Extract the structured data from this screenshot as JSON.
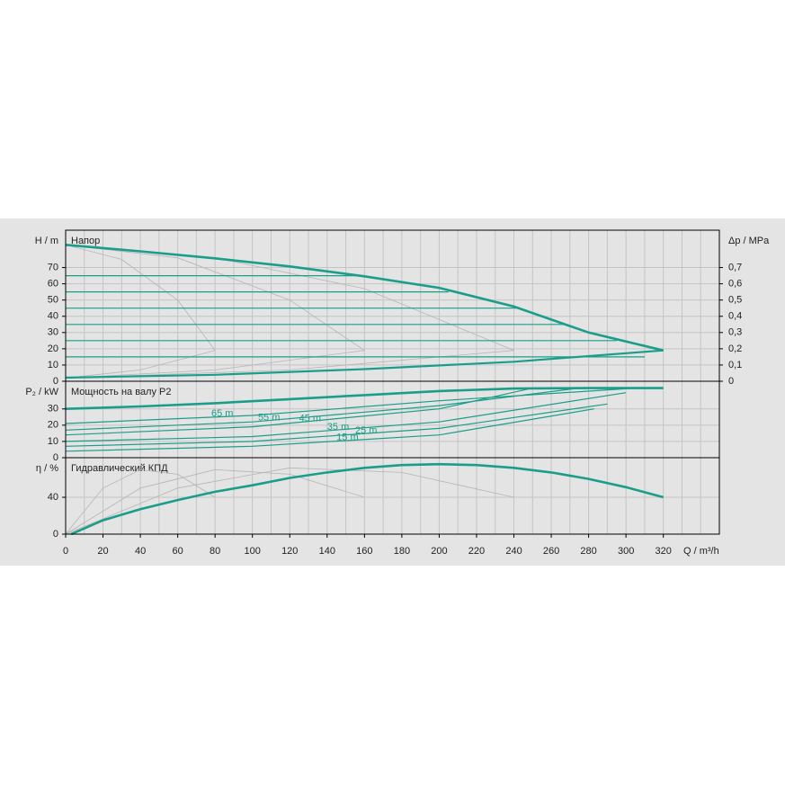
{
  "chart_data": [
    {
      "type": "line",
      "title": "Напор",
      "ylabel": "H / m",
      "y2label": "Δp / MPa",
      "xlim": [
        0,
        350
      ],
      "ylim": [
        0,
        93
      ],
      "yticks": [
        0,
        10,
        20,
        30,
        40,
        50,
        60,
        70
      ],
      "y2lim": [
        0,
        0.93
      ],
      "y2ticks": [
        0,
        {
          "value": 0.1,
          "label": "0,1"
        },
        {
          "value": 0.2,
          "label": "0,2"
        },
        {
          "value": 0.3,
          "label": "0,3"
        },
        {
          "value": 0.4,
          "label": "0,4"
        },
        {
          "value": 0.5,
          "label": "0,5"
        },
        {
          "value": 0.6,
          "label": "0,6"
        },
        {
          "value": 0.7,
          "label": "0,7"
        }
      ],
      "series": [
        {
          "color": "#b5b5b5",
          "line_width": 0.8,
          "x": [
            0,
            30,
            60,
            80
          ],
          "values": [
            84,
            75,
            50,
            19
          ]
        },
        {
          "color": "#b5b5b5",
          "line_width": 0.8,
          "x": [
            0,
            60,
            120,
            160
          ],
          "values": [
            84,
            76,
            50,
            19
          ]
        },
        {
          "color": "#b5b5b5",
          "line_width": 0.8,
          "x": [
            0,
            80,
            160,
            240
          ],
          "values": [
            84,
            76,
            57,
            19
          ]
        },
        {
          "color": "#b5b5b5",
          "line_width": 0.8,
          "x": [
            0,
            40,
            80
          ],
          "values": [
            2,
            7,
            19
          ]
        },
        {
          "color": "#b5b5b5",
          "line_width": 0.8,
          "x": [
            0,
            80,
            160
          ],
          "values": [
            2,
            7,
            19
          ]
        },
        {
          "color": "#b5b5b5",
          "line_width": 0.8,
          "x": [
            0,
            120,
            240
          ],
          "values": [
            2,
            7,
            19
          ]
        },
        {
          "color": "#1a9e8a",
          "line_width": 1.2,
          "x": [
            0,
            158
          ],
          "values": [
            65,
            65
          ]
        },
        {
          "color": "#1a9e8a",
          "line_width": 1.2,
          "x": [
            0,
            205
          ],
          "values": [
            55,
            55
          ]
        },
        {
          "color": "#1a9e8a",
          "line_width": 1.2,
          "x": [
            0,
            242
          ],
          "values": [
            45,
            45
          ]
        },
        {
          "color": "#1a9e8a",
          "line_width": 1.2,
          "x": [
            0,
            268
          ],
          "values": [
            35,
            35
          ]
        },
        {
          "color": "#1a9e8a",
          "line_width": 1.2,
          "x": [
            0,
            295
          ],
          "values": [
            25,
            25
          ]
        },
        {
          "color": "#1a9e8a",
          "line_width": 1.2,
          "x": [
            0,
            310
          ],
          "values": [
            15,
            15
          ]
        },
        {
          "color": "#1a9e8a",
          "line_width": 2.2,
          "x": [
            0,
            80,
            160,
            240,
            320
          ],
          "values": [
            2.2,
            4,
            7.5,
            12,
            19
          ]
        },
        {
          "color": "#1a9e8a",
          "line_width": 2.6,
          "x": [
            0,
            40,
            80,
            120,
            160,
            200,
            240,
            280,
            320
          ],
          "values": [
            84,
            80,
            75.7,
            70.7,
            64.6,
            57.5,
            46,
            30,
            19
          ]
        }
      ]
    },
    {
      "type": "line",
      "title": "Мощность на валу P2",
      "ylabel": "P₂ / kW",
      "xlim": [
        0,
        350
      ],
      "ylim": [
        0,
        47
      ],
      "yticks": [
        0,
        10,
        20,
        30
      ],
      "series": [
        {
          "name": "65 m",
          "color": "#1a9e8a",
          "line_width": 1.2,
          "x": [
            0,
            100,
            200,
            305
          ],
          "values": [
            21,
            26,
            35,
            42.8
          ]
        },
        {
          "name": "55 m",
          "color": "#1a9e8a",
          "line_width": 1.2,
          "x": [
            0,
            100,
            200,
            275
          ],
          "values": [
            17,
            22,
            32,
            42.8
          ]
        },
        {
          "name": "45 m",
          "color": "#1a9e8a",
          "line_width": 1.2,
          "x": [
            0,
            100,
            200,
            250
          ],
          "values": [
            14,
            19,
            30,
            42.8
          ]
        },
        {
          "name": "35 m",
          "color": "#1a9e8a",
          "line_width": 1.2,
          "x": [
            0,
            100,
            200,
            300
          ],
          "values": [
            10,
            13,
            22,
            40
          ]
        },
        {
          "name": "25 m",
          "color": "#1a9e8a",
          "line_width": 1.2,
          "x": [
            0,
            100,
            200,
            290
          ],
          "values": [
            7,
            10,
            18,
            33
          ]
        },
        {
          "name": "15 m",
          "color": "#1a9e8a",
          "line_width": 1.2,
          "x": [
            0,
            100,
            200,
            283
          ],
          "values": [
            4,
            7,
            14,
            30
          ]
        },
        {
          "color": "#1a9e8a",
          "line_width": 2.6,
          "x": [
            0,
            40,
            80,
            120,
            160,
            200,
            240,
            280,
            320
          ],
          "values": [
            30,
            31.5,
            33.5,
            36,
            38.5,
            41,
            42.5,
            42.8,
            42.8
          ]
        }
      ]
    },
    {
      "type": "line",
      "title": "Гидравлический КПД",
      "ylabel": "η / %",
      "xlabel": "Q / m³/h",
      "xlim": [
        0,
        350
      ],
      "ylim": [
        0,
        83
      ],
      "yticks": [
        0,
        40
      ],
      "xticks": [
        0,
        20,
        40,
        60,
        80,
        100,
        120,
        140,
        160,
        180,
        200,
        220,
        240,
        260,
        280,
        300,
        320
      ],
      "xgrid": [
        10,
        30,
        50,
        70,
        90,
        110,
        130,
        150,
        170,
        190,
        210,
        230,
        250,
        270,
        290,
        310,
        330,
        340
      ],
      "series": [
        {
          "color": "#b5b5b5",
          "line_width": 0.8,
          "x": [
            0,
            20,
            40,
            60,
            80
          ],
          "values": [
            0,
            50,
            70,
            65,
            40
          ]
        },
        {
          "color": "#b5b5b5",
          "line_width": 0.8,
          "x": [
            0,
            40,
            80,
            120,
            160
          ],
          "values": [
            0,
            50,
            70,
            65,
            40
          ]
        },
        {
          "color": "#b5b5b5",
          "line_width": 0.8,
          "x": [
            0,
            60,
            120,
            180,
            240
          ],
          "values": [
            0,
            50,
            72,
            67,
            40
          ]
        },
        {
          "color": "#1a9e8a",
          "line_width": 2.6,
          "x": [
            3,
            20,
            40,
            60,
            80,
            100,
            120,
            140,
            160,
            180,
            200,
            220,
            240,
            260,
            280,
            300,
            320
          ],
          "values": [
            0,
            15,
            27,
            37,
            46,
            53,
            61,
            67,
            72,
            75,
            76,
            75,
            72,
            67,
            60,
            51,
            40
          ]
        }
      ]
    }
  ]
}
